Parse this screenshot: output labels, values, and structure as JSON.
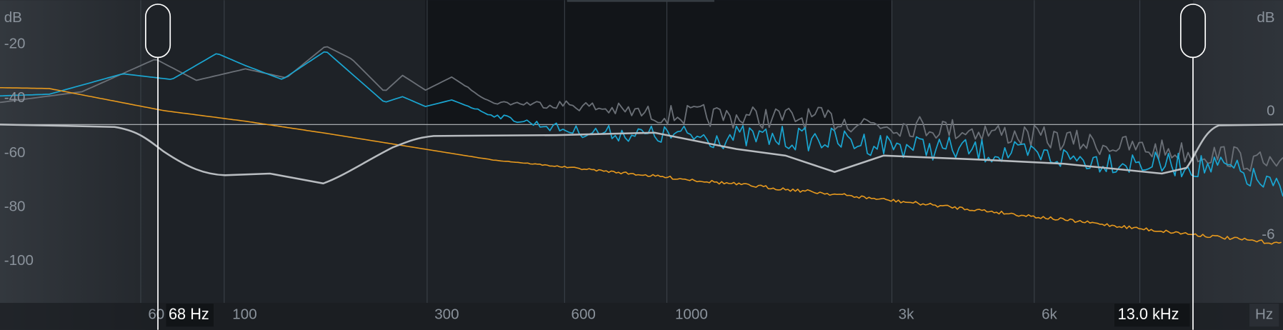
{
  "axis_left": {
    "unit": "dB",
    "ticks": [
      "-20",
      "-40",
      "-60",
      "-80",
      "-100"
    ]
  },
  "axis_right": {
    "unit": "dB",
    "ticks": [
      "0",
      "-6"
    ]
  },
  "frequency_axis": {
    "unit": "Hz",
    "labels": [
      "60",
      "100",
      "300",
      "600",
      "1000",
      "3k",
      "6k"
    ]
  },
  "handles": [
    {
      "label": "68 Hz"
    },
    {
      "label": "13.0 kHz"
    }
  ]
}
